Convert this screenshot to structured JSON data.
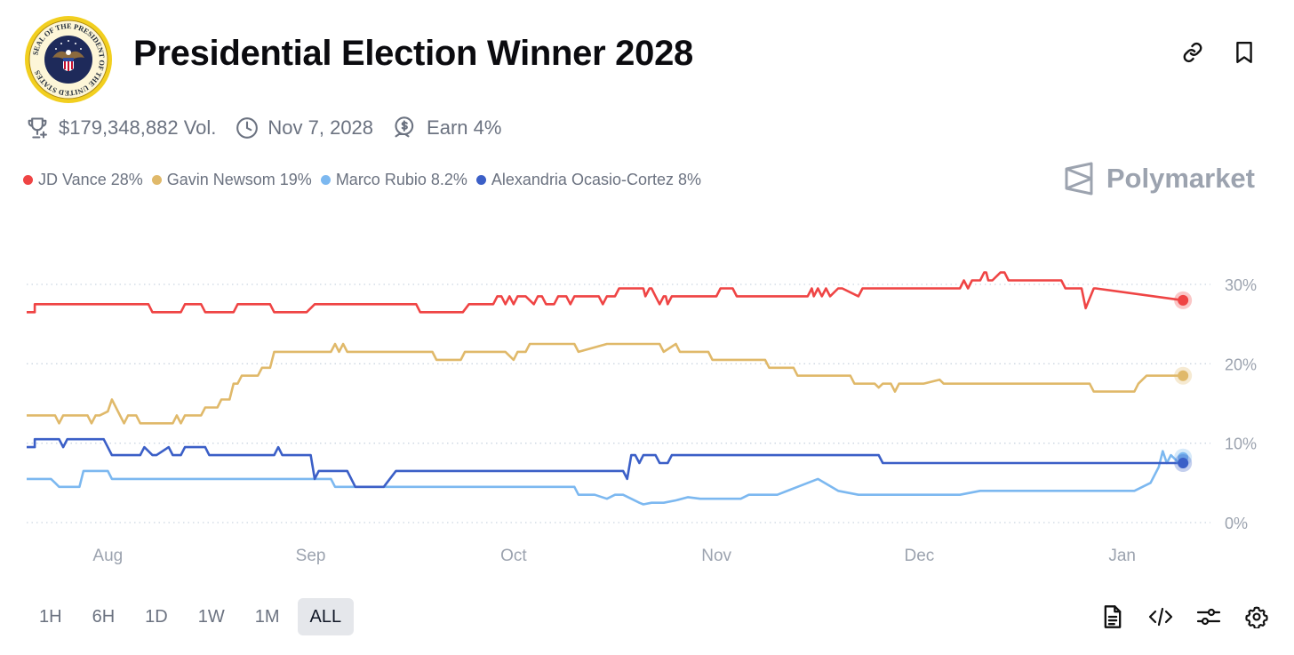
{
  "header": {
    "title": "Presidential Election Winner 2028",
    "seal_text": "SEAL OF THE PRESIDENT OF THE UNITED STATES"
  },
  "meta": {
    "volume": "$179,348,882 Vol.",
    "end_date": "Nov 7, 2028",
    "earn": "Earn 4%"
  },
  "legend": [
    {
      "label": "JD Vance 28%",
      "color": "#ef4444"
    },
    {
      "label": "Gavin Newsom 19%",
      "color": "#e0b96a"
    },
    {
      "label": "Marco Rubio 8.2%",
      "color": "#7cb8f0"
    },
    {
      "label": "Alexandria Ocasio-Cortez 8%",
      "color": "#3b5fc7"
    }
  ],
  "brand": {
    "name": "Polymarket"
  },
  "ranges": [
    "1H",
    "6H",
    "1D",
    "1W",
    "1M",
    "ALL"
  ],
  "active_range": "ALL",
  "icons": {
    "top": [
      "link-icon",
      "bookmark-icon"
    ],
    "bottom": [
      "document-icon",
      "code-icon",
      "sliders-icon",
      "gear-icon"
    ]
  },
  "chart_data": {
    "type": "line",
    "x_ticks": [
      0.5,
      1.5,
      2.5,
      3.5,
      4.5,
      5.5
    ],
    "x_tick_labels": [
      "Aug",
      "Sep",
      "Oct",
      "Nov",
      "Dec",
      "Jan"
    ],
    "xlim": [
      0.1,
      5.83
    ],
    "ylim": [
      0,
      30
    ],
    "y_ticks": [
      0,
      10,
      20,
      30
    ],
    "y_tick_labels": [
      "0%",
      "10%",
      "20%",
      "30%"
    ],
    "grid": true,
    "series": [
      {
        "name": "JD Vance",
        "color": "#ef4444",
        "x": [
          0.1,
          0.14,
          0.14,
          0.7,
          0.72,
          0.86,
          0.88,
          0.96,
          0.98,
          1.12,
          1.14,
          1.3,
          1.32,
          1.48,
          1.52,
          2.02,
          2.04,
          2.25,
          2.28,
          2.4,
          2.42,
          2.44,
          2.46,
          2.48,
          2.5,
          2.52,
          2.56,
          2.6,
          2.62,
          2.64,
          2.66,
          2.7,
          2.72,
          2.76,
          2.78,
          2.8,
          2.82,
          2.86,
          2.92,
          2.94,
          2.96,
          3.0,
          3.02,
          3.14,
          3.15,
          3.17,
          3.18,
          3.2,
          3.22,
          3.24,
          3.25,
          3.26,
          3.28,
          3.3,
          3.32,
          3.34,
          3.36,
          3.5,
          3.52,
          3.58,
          3.6,
          3.95,
          3.97,
          3.98,
          4.0,
          4.02,
          4.04,
          4.06,
          4.1,
          4.12,
          4.2,
          4.22,
          4.28,
          4.3,
          4.34,
          4.36,
          4.7,
          4.72,
          4.74,
          4.76,
          4.8,
          4.82,
          4.83,
          4.84,
          4.86,
          4.9,
          4.92,
          4.94,
          4.96,
          4.98,
          5.2,
          5.22,
          5.25,
          5.3,
          5.32,
          5.36,
          5.37,
          5.8
        ],
        "y": [
          26.5,
          26.5,
          27.5,
          27.5,
          26.5,
          26.5,
          27.5,
          27.5,
          26.5,
          26.5,
          27.5,
          27.5,
          26.5,
          26.5,
          27.5,
          27.5,
          26.5,
          26.5,
          27.5,
          27.5,
          28.5,
          28.5,
          27.5,
          28.5,
          27.5,
          28.5,
          28.5,
          27.5,
          28.5,
          28.5,
          27.5,
          27.5,
          28.5,
          28.5,
          27.5,
          28.5,
          28.5,
          28.5,
          28.5,
          27.5,
          28.5,
          28.5,
          29.5,
          29.5,
          28.5,
          29.5,
          29.5,
          28.5,
          27.5,
          28.5,
          28.5,
          27.5,
          28.5,
          28.5,
          28.5,
          28.5,
          28.5,
          28.5,
          29.5,
          29.5,
          28.5,
          28.5,
          29.5,
          28.5,
          29.5,
          28.5,
          29.5,
          28.5,
          29.5,
          29.5,
          28.5,
          29.5,
          29.5,
          29.5,
          29.5,
          29.5,
          29.5,
          30.5,
          29.5,
          30.5,
          30.5,
          31.5,
          31.5,
          30.5,
          30.5,
          31.5,
          31.5,
          30.5,
          30.5,
          30.5,
          30.5,
          29.5,
          29.5,
          29.5,
          27.0,
          29.5,
          29.5,
          28.0
        ]
      },
      {
        "name": "Gavin Newsom",
        "color": "#e0b96a",
        "x": [
          0.1,
          0.24,
          0.26,
          0.28,
          0.3,
          0.4,
          0.42,
          0.44,
          0.46,
          0.5,
          0.52,
          0.56,
          0.58,
          0.6,
          0.64,
          0.66,
          0.68,
          0.72,
          0.76,
          0.82,
          0.84,
          0.86,
          0.88,
          0.96,
          0.98,
          1.04,
          1.06,
          1.1,
          1.12,
          1.14,
          1.16,
          1.24,
          1.26,
          1.3,
          1.32,
          1.6,
          1.62,
          1.64,
          1.66,
          1.68,
          1.72,
          1.8,
          1.82,
          2.1,
          2.12,
          2.24,
          2.26,
          2.3,
          2.32,
          2.44,
          2.46,
          2.5,
          2.52,
          2.56,
          2.58,
          2.8,
          2.82,
          2.96,
          2.98,
          3.22,
          3.24,
          3.3,
          3.32,
          3.34,
          3.36,
          3.38,
          3.46,
          3.48,
          3.74,
          3.76,
          3.88,
          3.9,
          4.16,
          4.18,
          4.26,
          4.28,
          4.3,
          4.32,
          4.36,
          4.38,
          4.4,
          4.5,
          4.52,
          4.6,
          4.62,
          4.64,
          5.34,
          5.36,
          5.56,
          5.58,
          5.62,
          5.64,
          5.8
        ],
        "y": [
          13.5,
          13.5,
          12.5,
          13.5,
          13.5,
          13.5,
          12.5,
          13.5,
          13.5,
          14,
          15.5,
          13.5,
          12.5,
          13.5,
          13.5,
          12.5,
          12.5,
          12.5,
          12.5,
          12.5,
          13.5,
          12.5,
          13.5,
          13.5,
          14.5,
          14.5,
          15.5,
          15.5,
          17.5,
          17.5,
          18.5,
          18.5,
          19.5,
          19.5,
          21.5,
          21.5,
          22.5,
          21.5,
          22.5,
          21.5,
          21.5,
          21.5,
          21.5,
          21.5,
          20.5,
          20.5,
          21.5,
          21.5,
          21.5,
          21.5,
          21.5,
          20.5,
          21.5,
          21.5,
          22.5,
          22.5,
          21.5,
          22.5,
          22.5,
          22.5,
          21.5,
          22.5,
          21.5,
          21.5,
          21.5,
          21.5,
          21.5,
          20.5,
          20.5,
          19.5,
          19.5,
          18.5,
          18.5,
          17.5,
          17.5,
          17.5,
          17.0,
          17.5,
          17.5,
          16.5,
          17.5,
          17.5,
          17.5,
          18.0,
          17.5,
          17.5,
          17.5,
          16.5,
          16.5,
          17.5,
          18.5,
          18.5,
          18.5
        ]
      },
      {
        "name": "Marco Rubio",
        "color": "#7cb8f0",
        "x": [
          0.1,
          0.22,
          0.24,
          0.26,
          0.3,
          0.36,
          0.38,
          0.5,
          0.52,
          1.2,
          1.22,
          1.6,
          1.62,
          2.8,
          2.82,
          2.9,
          2.96,
          3.0,
          3.04,
          3.08,
          3.12,
          3.14,
          3.18,
          3.24,
          3.3,
          3.36,
          3.42,
          3.46,
          3.5,
          3.54,
          3.58,
          3.62,
          3.66,
          3.7,
          3.74,
          3.8,
          3.9,
          4.0,
          4.1,
          4.2,
          4.3,
          4.4,
          4.5,
          4.6,
          4.7,
          4.8,
          4.9,
          5.0,
          5.1,
          5.2,
          5.3,
          5.4,
          5.44,
          5.48,
          5.52,
          5.56,
          5.6,
          5.64,
          5.68,
          5.7,
          5.72,
          5.74,
          5.76,
          5.78,
          5.8
        ],
        "y": [
          5.5,
          5.5,
          5.0,
          4.5,
          4.5,
          4.5,
          6.5,
          6.5,
          5.5,
          5.5,
          5.5,
          5.5,
          4.5,
          4.5,
          3.5,
          3.5,
          3.0,
          3.5,
          3.5,
          3.0,
          2.5,
          2.3,
          2.5,
          2.5,
          2.8,
          3.2,
          3.0,
          3.0,
          3.0,
          3.0,
          3.0,
          3.0,
          3.5,
          3.5,
          3.5,
          3.5,
          4.5,
          5.5,
          4.0,
          3.5,
          3.5,
          3.5,
          3.5,
          3.5,
          3.5,
          4.0,
          4.0,
          4.0,
          4.0,
          4.0,
          4.0,
          4.0,
          4.0,
          4.0,
          4.0,
          4.0,
          4.5,
          5.0,
          7.0,
          9.0,
          7.5,
          8.5,
          8.0,
          7.5,
          8.2
        ]
      },
      {
        "name": "Alexandria Ocasio-Cortez",
        "color": "#3b5fc7",
        "x": [
          0.1,
          0.14,
          0.14,
          0.26,
          0.28,
          0.3,
          0.32,
          0.48,
          0.52,
          0.66,
          0.68,
          0.72,
          0.74,
          0.8,
          0.82,
          0.86,
          0.88,
          0.98,
          1.0,
          1.32,
          1.34,
          1.36,
          1.5,
          1.52,
          1.54,
          1.68,
          1.72,
          1.86,
          1.92,
          2.1,
          2.9,
          3.04,
          3.06,
          3.08,
          3.1,
          3.12,
          3.14,
          3.2,
          3.22,
          3.26,
          3.28,
          4.3,
          4.32,
          5.8
        ],
        "y": [
          9.5,
          9.5,
          10.5,
          10.5,
          9.5,
          10.5,
          10.5,
          10.5,
          8.5,
          8.5,
          9.5,
          8.5,
          8.5,
          9.5,
          8.5,
          8.5,
          9.5,
          9.5,
          8.5,
          8.5,
          9.5,
          8.5,
          8.5,
          5.5,
          6.5,
          6.5,
          4.5,
          4.5,
          6.5,
          6.5,
          6.5,
          6.5,
          5.5,
          8.5,
          8.5,
          7.5,
          8.5,
          8.5,
          7.5,
          7.5,
          8.5,
          8.5,
          7.5,
          7.5
        ]
      }
    ]
  }
}
